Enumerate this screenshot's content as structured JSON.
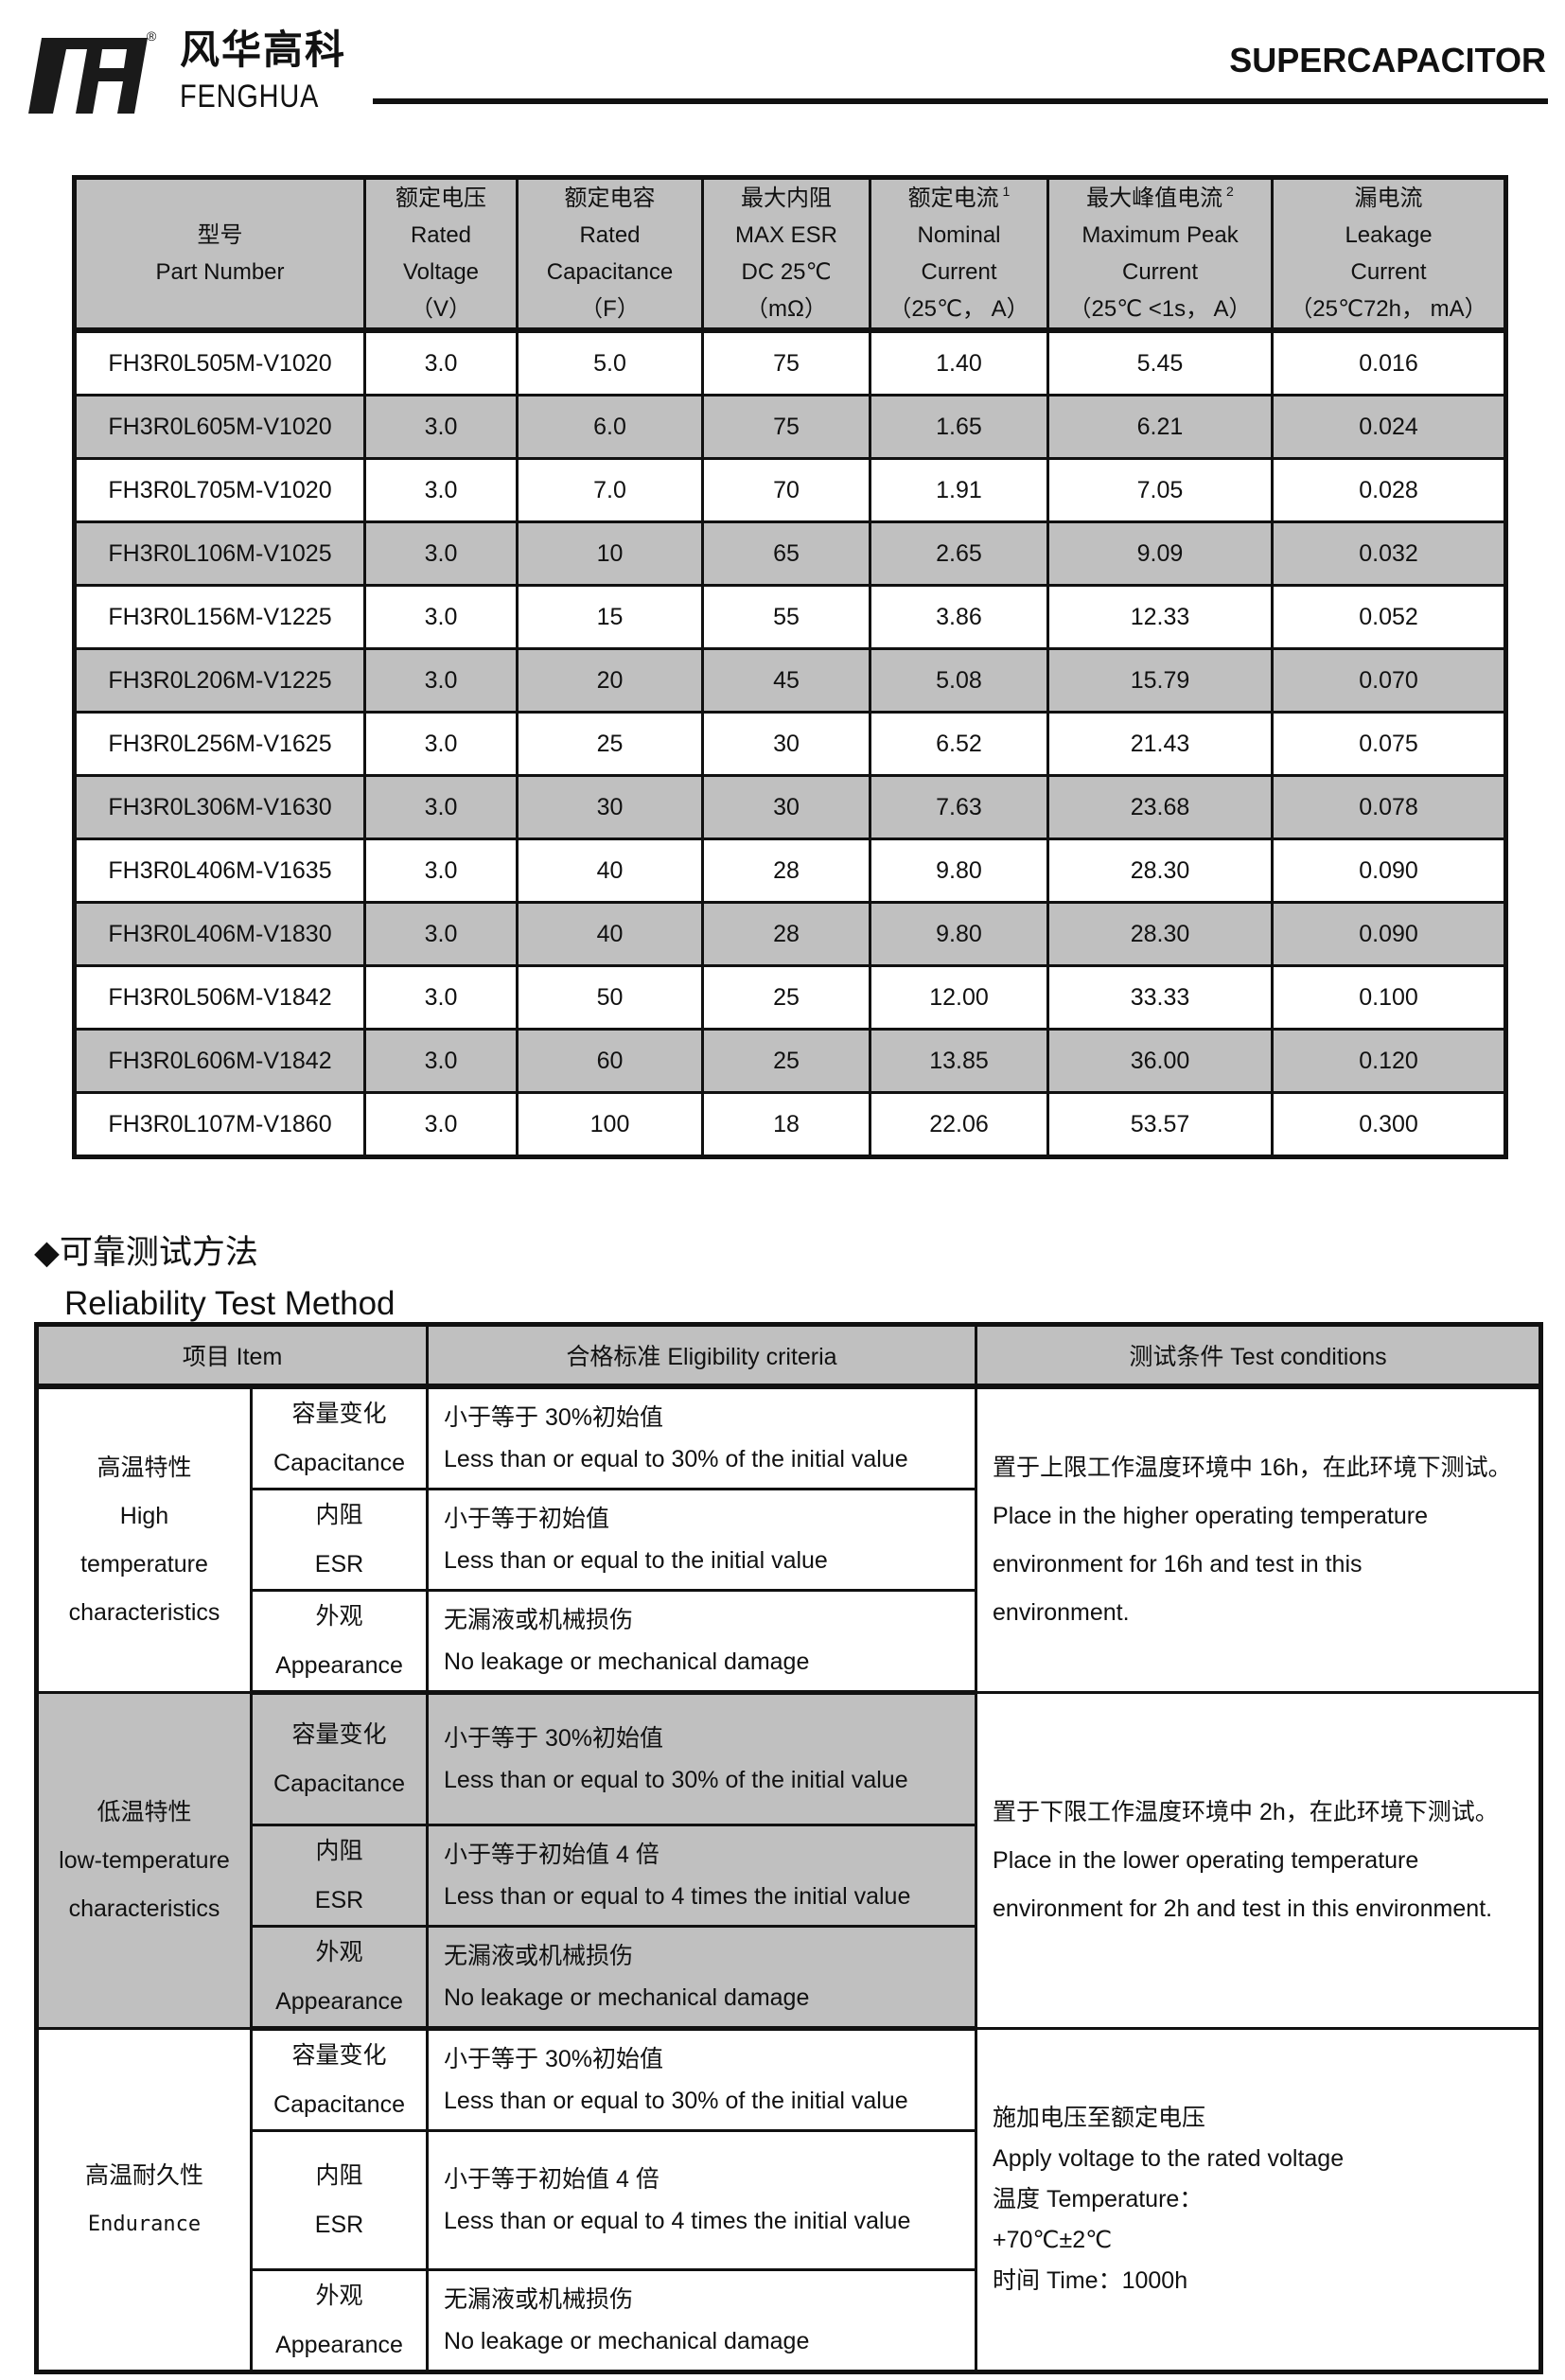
{
  "header": {
    "brand_cn": "风华高科",
    "brand_en": "FENGHUA",
    "registered_mark": "®",
    "doc_title": "SUPERCAPACITOR"
  },
  "spec_table": {
    "columns": [
      {
        "cn": "型号",
        "en1": "Part Number",
        "en2": "",
        "unit": ""
      },
      {
        "cn": "额定电压",
        "en1": "Rated",
        "en2": "Voltage",
        "unit": "（V）"
      },
      {
        "cn": "额定电容",
        "en1": "Rated",
        "en2": "Capacitance",
        "unit": "（F）"
      },
      {
        "cn": "最大内阻",
        "en1": "MAX ESR",
        "en2": "DC 25℃",
        "unit": "（mΩ）"
      },
      {
        "cn": "额定电流",
        "sup": "1",
        "en1": "Nominal",
        "en2": "Current",
        "unit": "（25℃， A）"
      },
      {
        "cn": "最大峰值电流",
        "sup": "2",
        "en1": "Maximum Peak",
        "en2": "Current",
        "unit": "（25℃ <1s， A）"
      },
      {
        "cn": "漏电流",
        "en1": "Leakage",
        "en2": "Current",
        "unit": "（25℃72h， mA）"
      }
    ],
    "rows": [
      [
        "FH3R0L505M-V1020",
        "3.0",
        "5.0",
        "75",
        "1.40",
        "5.45",
        "0.016"
      ],
      [
        "FH3R0L605M-V1020",
        "3.0",
        "6.0",
        "75",
        "1.65",
        "6.21",
        "0.024"
      ],
      [
        "FH3R0L705M-V1020",
        "3.0",
        "7.0",
        "70",
        "1.91",
        "7.05",
        "0.028"
      ],
      [
        "FH3R0L106M-V1025",
        "3.0",
        "10",
        "65",
        "2.65",
        "9.09",
        "0.032"
      ],
      [
        "FH3R0L156M-V1225",
        "3.0",
        "15",
        "55",
        "3.86",
        "12.33",
        "0.052"
      ],
      [
        "FH3R0L206M-V1225",
        "3.0",
        "20",
        "45",
        "5.08",
        "15.79",
        "0.070"
      ],
      [
        "FH3R0L256M-V1625",
        "3.0",
        "25",
        "30",
        "6.52",
        "21.43",
        "0.075"
      ],
      [
        "FH3R0L306M-V1630",
        "3.0",
        "30",
        "30",
        "7.63",
        "23.68",
        "0.078"
      ],
      [
        "FH3R0L406M-V1635",
        "3.0",
        "40",
        "28",
        "9.80",
        "28.30",
        "0.090"
      ],
      [
        "FH3R0L406M-V1830",
        "3.0",
        "40",
        "28",
        "9.80",
        "28.30",
        "0.090"
      ],
      [
        "FH3R0L506M-V1842",
        "3.0",
        "50",
        "25",
        "12.00",
        "33.33",
        "0.100"
      ],
      [
        "FH3R0L606M-V1842",
        "3.0",
        "60",
        "25",
        "13.85",
        "36.00",
        "0.120"
      ],
      [
        "FH3R0L107M-V1860",
        "3.0",
        "100",
        "18",
        "22.06",
        "53.57",
        "0.300"
      ]
    ],
    "row_shading": "alternating #c0c0c0"
  },
  "reliability": {
    "heading_cn": "◆可靠测试方法",
    "heading_en": "Reliability Test Method",
    "headers": {
      "item": "项目 Item",
      "criteria": "合格标准 Eligibility criteria",
      "conditions": "测试条件 Test conditions"
    },
    "sub_items": {
      "cap_cn": "容量变化",
      "cap_en": "Capacitance",
      "esr_cn": "内阻",
      "esr_en": "ESR",
      "app_cn": "外观",
      "app_en": "Appearance"
    },
    "sections": [
      {
        "item": [
          "高温特性",
          "High",
          "temperature",
          "characteristics"
        ],
        "criteria": [
          [
            "小于等于 30%初始值",
            "Less than or equal to 30% of the initial value"
          ],
          [
            "小于等于初始值",
            "Less than or equal to the initial value"
          ],
          [
            "无漏液或机械损伤",
            "No leakage or mechanical damage"
          ]
        ],
        "conditions": [
          "置于上限工作温度环境中 16h，在此环境下测试。",
          "Place in the higher operating temperature",
          "environment for 16h and test in this",
          "environment."
        ]
      },
      {
        "item": [
          "低温特性",
          "low-temperature",
          "characteristics"
        ],
        "criteria": [
          [
            "小于等于 30%初始值",
            "Less than or equal to 30% of the initial value"
          ],
          [
            "小于等于初始值 4 倍",
            "Less than or equal to 4 times the initial value"
          ],
          [
            "无漏液或机械损伤",
            "No leakage or mechanical damage"
          ]
        ],
        "conditions": [
          "置于下限工作温度环境中 2h，在此环境下测试。",
          "Place in the lower operating temperature",
          "environment for 2h and test in this environment."
        ]
      },
      {
        "item": [
          "高温耐久性",
          "Endurance"
        ],
        "criteria": [
          [
            "小于等于 30%初始值",
            "Less than or equal to 30% of the initial value"
          ],
          [
            "小于等于初始值 4 倍",
            "Less than or equal to 4 times the initial value"
          ],
          [
            "无漏液或机械损伤",
            "No leakage or mechanical damage"
          ]
        ],
        "conditions": [
          "施加电压至额定电压",
          "Apply voltage to the rated voltage",
          "温度 Temperature：",
          "+70℃±2℃",
          "时间 Time：1000h"
        ]
      }
    ]
  }
}
